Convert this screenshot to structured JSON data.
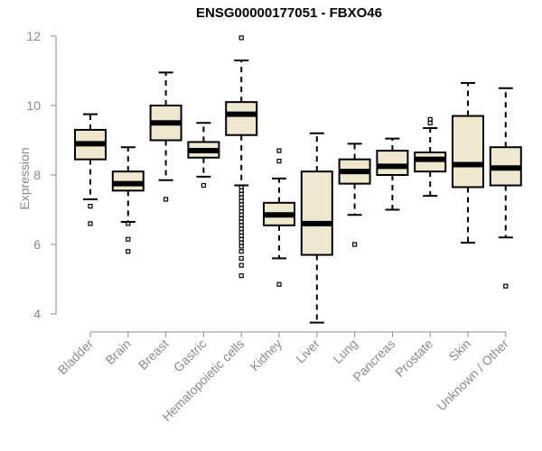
{
  "chart_data": {
    "type": "boxplot",
    "title": "ENSG00000177051 - FBXO46",
    "xlabel": "",
    "ylabel": "Expression",
    "ylim": [
      4,
      12
    ],
    "yticks": [
      4,
      6,
      8,
      10,
      12
    ],
    "box_color": "#efe8cf",
    "categories": [
      "Bladder",
      "Brain",
      "Breast",
      "Gastric",
      "Hematopoietic cells",
      "Kidney",
      "Liver",
      "Lung",
      "Pancreas",
      "Prostate",
      "Skin",
      "Unknown / Other"
    ],
    "boxes": [
      {
        "min": 7.3,
        "q1": 8.45,
        "median": 8.9,
        "q3": 9.3,
        "max": 9.75,
        "outliers": [
          7.1,
          6.6
        ]
      },
      {
        "min": 6.65,
        "q1": 7.55,
        "median": 7.75,
        "q3": 8.1,
        "max": 8.8,
        "outliers": [
          6.6,
          6.15,
          5.8
        ]
      },
      {
        "min": 7.85,
        "q1": 9.0,
        "median": 9.5,
        "q3": 10.0,
        "max": 10.95,
        "outliers": [
          7.3
        ]
      },
      {
        "min": 7.95,
        "q1": 8.5,
        "median": 8.7,
        "q3": 8.95,
        "max": 9.5,
        "outliers": [
          7.7
        ]
      },
      {
        "min": 7.7,
        "q1": 9.15,
        "median": 9.75,
        "q3": 10.1,
        "max": 11.3,
        "outliers": [
          11.95,
          7.65,
          7.55,
          7.45,
          7.35,
          7.25,
          7.15,
          7.05,
          6.95,
          6.85,
          6.75,
          6.65,
          6.55,
          6.45,
          6.35,
          6.25,
          6.15,
          6.05,
          5.95,
          5.8,
          5.6,
          5.4,
          5.1
        ]
      },
      {
        "min": 5.6,
        "q1": 6.55,
        "median": 6.85,
        "q3": 7.2,
        "max": 7.9,
        "outliers": [
          8.7,
          8.4,
          4.85
        ]
      },
      {
        "min": 3.75,
        "q1": 5.7,
        "median": 6.6,
        "q3": 8.1,
        "max": 9.2,
        "outliers": []
      },
      {
        "min": 6.85,
        "q1": 7.75,
        "median": 8.1,
        "q3": 8.45,
        "max": 8.9,
        "outliers": [
          6.0
        ]
      },
      {
        "min": 7.0,
        "q1": 8.0,
        "median": 8.25,
        "q3": 8.7,
        "max": 9.05,
        "outliers": []
      },
      {
        "min": 7.4,
        "q1": 8.1,
        "median": 8.45,
        "q3": 8.65,
        "max": 9.35,
        "outliers": [
          9.6,
          9.5
        ]
      },
      {
        "min": 6.05,
        "q1": 7.65,
        "median": 8.3,
        "q3": 9.7,
        "max": 10.65,
        "outliers": []
      },
      {
        "min": 6.2,
        "q1": 7.7,
        "median": 8.2,
        "q3": 8.8,
        "max": 10.5,
        "outliers": [
          4.8
        ]
      }
    ]
  }
}
